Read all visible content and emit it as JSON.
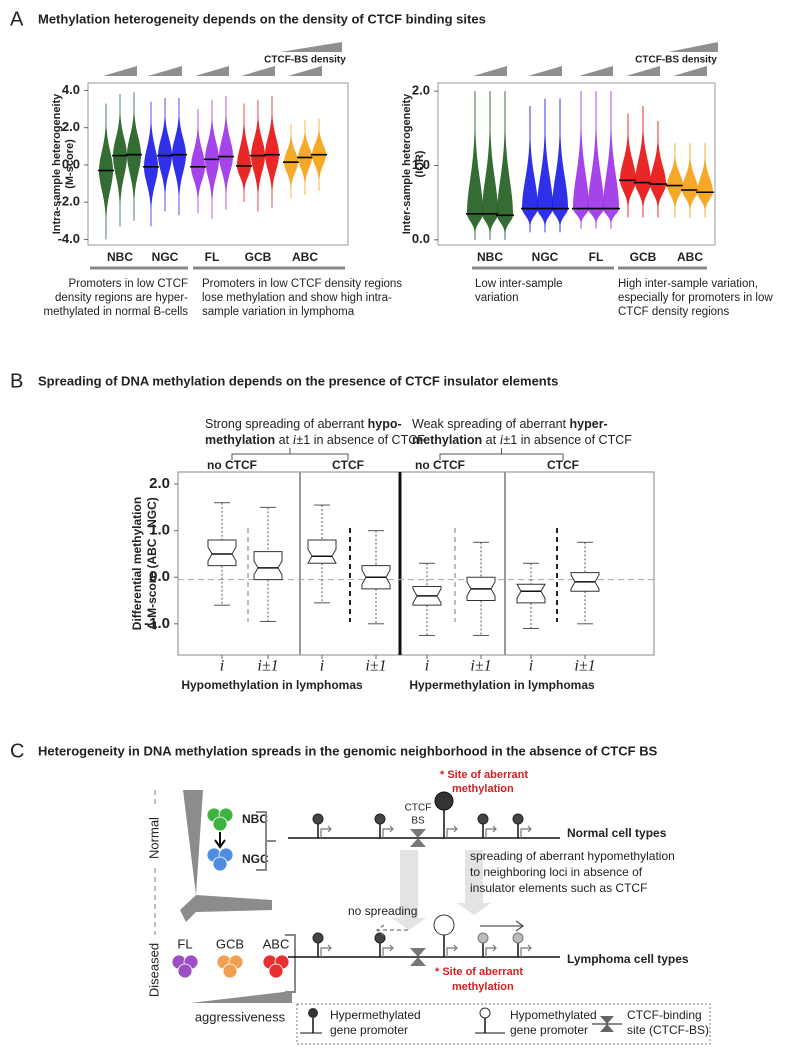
{
  "panels": [
    {
      "label": "A",
      "title": "Methylation heterogeneity depends on the density of CTCF binding sites"
    },
    {
      "label": "B",
      "title": "Spreading of DNA methylation depends on the presence of CTCF insulator elements"
    },
    {
      "label": "C",
      "title": "Heterogeneity in DNA methylation spreads in the genomic neighborhood in the absence of CTCF BS"
    }
  ],
  "chart_data": [
    {
      "type": "violin",
      "y_label": [
        "Intra-sample heterogeneity",
        "(M-score)"
      ],
      "density_label": "CTCF-BS density",
      "ylim": [
        -4.3,
        4.4
      ],
      "yticks": [
        {
          "value": 4,
          "label": "4.0"
        },
        {
          "value": 2,
          "label": "2.0"
        },
        {
          "value": 0,
          "label": "0.0"
        },
        {
          "value": -2,
          "label": "-2.0"
        },
        {
          "value": -4,
          "label": "-4.0"
        }
      ],
      "groups": [
        {
          "name": "NBC",
          "color": "#1e5c1e",
          "low": [
            -4.0,
            -3.3,
            -3.0
          ],
          "median": [
            -0.3,
            0.5,
            0.55
          ],
          "high": [
            3.3,
            3.8,
            3.9
          ]
        },
        {
          "name": "NGC",
          "color": "#1a1ae6",
          "low": [
            -3.3,
            -2.5,
            -2.7
          ],
          "median": [
            -0.1,
            0.5,
            0.55
          ],
          "high": [
            3.4,
            3.6,
            3.6
          ]
        },
        {
          "name": "FL",
          "color": "#9a30e8",
          "low": [
            -2.6,
            -2.9,
            -2.4
          ],
          "median": [
            -0.1,
            0.3,
            0.45
          ],
          "high": [
            3.0,
            3.5,
            3.7
          ]
        },
        {
          "name": "GCB",
          "color": "#e81010",
          "low": [
            -2.0,
            -2.5,
            -2.3
          ],
          "median": [
            -0.05,
            0.5,
            0.55
          ],
          "high": [
            3.3,
            3.5,
            3.7
          ]
        },
        {
          "name": "ABC",
          "color": "#f5a010",
          "low": [
            -1.8,
            -1.6,
            -1.4
          ],
          "median": [
            0.15,
            0.4,
            0.55
          ],
          "high": [
            2.2,
            2.4,
            2.5
          ]
        }
      ],
      "annotations": [
        [
          "Promoters in low CTCF",
          "density regions are hyper-",
          "methylated in normal B-cells"
        ],
        [
          "Promoters in low CTCF density regions",
          "lose methylation and show high intra-",
          "sample variation in lymphoma"
        ]
      ]
    },
    {
      "type": "violin",
      "y_label": [
        "Inter-sample heterogeneity",
        "(IQR)"
      ],
      "density_label": "CTCF-BS density",
      "ylim": [
        -0.07,
        2.11
      ],
      "yticks": [
        {
          "value": 2,
          "label": "2.0"
        },
        {
          "value": 1,
          "label": "1.0"
        },
        {
          "value": 0,
          "label": "0.0"
        }
      ],
      "groups": [
        {
          "name": "NBC",
          "color": "#1e5c1e",
          "low": [
            0.0,
            0.0,
            0.0
          ],
          "median": [
            0.35,
            0.35,
            0.33
          ],
          "high": [
            2.0,
            2.0,
            2.0
          ]
        },
        {
          "name": "NGC",
          "color": "#1a1ae6",
          "low": [
            0.1,
            0.1,
            0.1
          ],
          "median": [
            0.42,
            0.42,
            0.42
          ],
          "high": [
            1.8,
            1.9,
            1.9
          ]
        },
        {
          "name": "FL",
          "color": "#9a30e8",
          "low": [
            0.15,
            0.15,
            0.15
          ],
          "median": [
            0.42,
            0.42,
            0.42
          ],
          "high": [
            2.0,
            2.0,
            2.0
          ]
        },
        {
          "name": "GCB",
          "color": "#e81010",
          "low": [
            0.3,
            0.3,
            0.3
          ],
          "median": [
            0.8,
            0.77,
            0.75
          ],
          "high": [
            1.7,
            1.8,
            1.6
          ]
        },
        {
          "name": "ABC",
          "color": "#f5a010",
          "low": [
            0.3,
            0.3,
            0.3
          ],
          "median": [
            0.73,
            0.67,
            0.64
          ],
          "high": [
            1.3,
            1.3,
            1.3
          ]
        }
      ],
      "annotations": [
        [
          "Low inter-sample",
          "variation"
        ],
        [
          "High inter-sample variation,",
          "especially for promoters in low",
          "CTCF density regions"
        ]
      ]
    },
    {
      "type": "box",
      "y_label": [
        "Differential methylation",
        "Δ M-score (ABC - NGC)"
      ],
      "ylim": [
        -1.67,
        2.26
      ],
      "yticks": [
        {
          "value": 2,
          "label": "2.0"
        },
        {
          "value": 1,
          "label": "1.0"
        },
        {
          "value": 0,
          "label": "0.0"
        },
        {
          "value": -1,
          "label": "-1.0"
        }
      ],
      "hline": -0.05,
      "categories": [
        "i",
        "i±1",
        "i",
        "i±1",
        "i",
        "i±1",
        "i",
        "i±1"
      ],
      "boxes": [
        {
          "min": -0.6,
          "q1": 0.25,
          "median": 0.5,
          "q3": 0.8,
          "max": 1.6
        },
        {
          "min": -0.95,
          "q1": -0.05,
          "median": 0.2,
          "q3": 0.55,
          "max": 1.5
        },
        {
          "min": -0.55,
          "q1": 0.3,
          "median": 0.45,
          "q3": 0.8,
          "max": 1.55
        },
        {
          "min": -1.0,
          "q1": -0.25,
          "median": 0.0,
          "q3": 0.25,
          "max": 1.0
        },
        {
          "min": -1.25,
          "q1": -0.6,
          "median": -0.4,
          "q3": -0.2,
          "max": 0.3
        },
        {
          "min": -1.25,
          "q1": -0.5,
          "median": -0.25,
          "q3": 0.0,
          "max": 0.75
        },
        {
          "min": -1.1,
          "q1": -0.55,
          "median": -0.3,
          "q3": -0.15,
          "max": 0.3
        },
        {
          "min": -1.0,
          "q1": -0.3,
          "median": -0.1,
          "q3": 0.1,
          "max": 0.75
        }
      ],
      "column_headers": [
        "no CTCF",
        "CTCF",
        "no CTCF",
        "CTCF"
      ],
      "group_labels": [
        "Hypomethylation in lymphomas",
        "Hypermethylation in lymphomas"
      ],
      "annotations": [
        [
          [
            {
              "text": "Strong spreading of aberrant "
            },
            {
              "text": "hypo-",
              "style": "bold"
            }
          ],
          [
            {
              "text": "methylation",
              "style": "bold"
            },
            {
              "text": " at "
            },
            {
              "text": "i",
              "style": "italic"
            },
            {
              "text": "±1 in absence of CTCF"
            }
          ]
        ],
        [
          [
            {
              "text": "Weak spreading of aberrant "
            },
            {
              "text": "hyper-",
              "style": "bold"
            }
          ],
          [
            {
              "text": "methylation",
              "style": "bold"
            },
            {
              "text": " at "
            },
            {
              "text": "i",
              "style": "italic"
            },
            {
              "text": "±1 in absence of CTCF"
            }
          ]
        ]
      ]
    }
  ],
  "diagram": {
    "states": [
      "Normal",
      "Diseased"
    ],
    "normal_cells": [
      "NBC",
      "NGC"
    ],
    "lymphoma_cells": [
      "FL",
      "GCB",
      "ABC"
    ],
    "gradient_label": "aggressiveness",
    "ctcf_label": [
      "CTCF",
      "BS"
    ],
    "site_label": [
      "*  Site of aberrant",
      "methylation"
    ],
    "tracks": [
      "Normal cell types",
      "Lymphoma cell types"
    ],
    "spreading_note": [
      "spreading of aberrant hypomethylation",
      "to neighboring loci in absence of",
      "insulator elements such as CTCF"
    ],
    "no_spreading": "no spreading",
    "legend": [
      [
        "Hypermethylated",
        "gene promoter"
      ],
      [
        "Hypomethylated",
        "gene promoter"
      ],
      [
        "CTCF-binding",
        "site (CTCF-BS)"
      ]
    ]
  }
}
